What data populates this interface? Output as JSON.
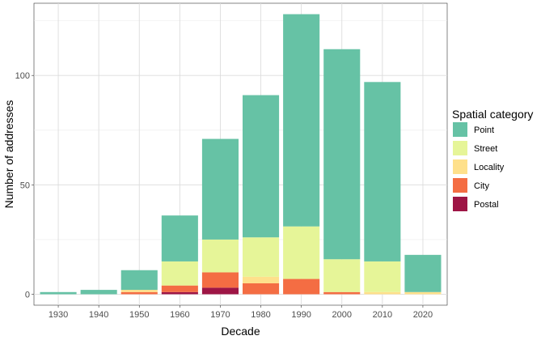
{
  "chart_data": {
    "type": "bar",
    "stacked": true,
    "title": "",
    "xlabel": "Decade",
    "ylabel": "Number of addresses",
    "categories": [
      "1930",
      "1940",
      "1950",
      "1960",
      "1970",
      "1980",
      "1990",
      "2000",
      "2010",
      "2020"
    ],
    "yticks": [
      0,
      50,
      100
    ],
    "ylim": [
      -5,
      133
    ],
    "grid": true,
    "legend": {
      "title": "Spatial category",
      "position": "right"
    },
    "series": [
      {
        "name": "Postal",
        "color": "#9e1545",
        "values": [
          0,
          0,
          0,
          1,
          3,
          0,
          0,
          0,
          0,
          0
        ]
      },
      {
        "name": "City",
        "color": "#f46d43",
        "values": [
          0,
          0,
          1,
          3,
          7,
          5,
          7,
          1,
          0,
          0
        ]
      },
      {
        "name": "Locality",
        "color": "#fee08b",
        "values": [
          0,
          0,
          1,
          0,
          0,
          3,
          0,
          0,
          1,
          1
        ]
      },
      {
        "name": "Street",
        "color": "#e6f598",
        "values": [
          0,
          0,
          0,
          11,
          15,
          18,
          24,
          15,
          14,
          0
        ]
      },
      {
        "name": "Point",
        "color": "#66c2a5",
        "values": [
          1,
          2,
          9,
          21,
          46,
          65,
          97,
          96,
          82,
          17
        ]
      }
    ]
  }
}
